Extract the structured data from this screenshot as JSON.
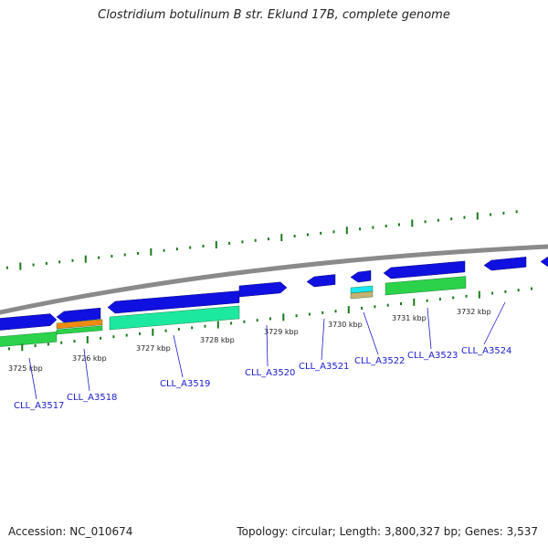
{
  "title": "Clostridium botulinum B str. Eklund 17B, complete genome",
  "footer": {
    "accession": "Accession: NC_010674",
    "summary": "Topology: circular; Length: 3,800,327 bp; Genes: 3,537"
  },
  "kbp_labels": [
    "3725 kbp",
    "3726 kbp",
    "3727 kbp",
    "3728 kbp",
    "3729 kbp",
    "3730 kbp",
    "3731 kbp",
    "3732 kbp"
  ],
  "gene_labels": [
    "CLL_A3517",
    "CLL_A3518",
    "CLL_A3519",
    "CLL_A3520",
    "CLL_A3521",
    "CLL_A3522",
    "CLL_A3523",
    "CLL_A3524"
  ],
  "colors": {
    "backbone": "#8a8a8a",
    "cds": "#1010e0",
    "gene_rna": "#2bd24a",
    "gene_rna_alt": "#1de8a0",
    "orange": "#f08a10",
    "cyan": "#18e8f0",
    "tan": "#c8b070",
    "tick": "#1a7a1a",
    "label": "#1a1acc"
  }
}
